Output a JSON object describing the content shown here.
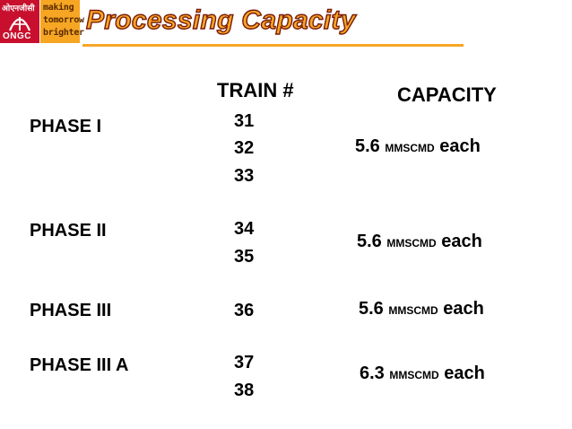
{
  "header": {
    "logo": {
      "hindi": "ओएनजीसी",
      "name": "ONGC"
    },
    "tagline": [
      "making",
      "tomorrow",
      "brighter"
    ],
    "title": "Processing Capacity"
  },
  "table": {
    "columns": {
      "train": "TRAIN #",
      "capacity": "CAPACITY"
    },
    "unit": "MMSCMD",
    "each": "each",
    "phases": [
      {
        "label": "PHASE  I",
        "trains": [
          "31",
          "32",
          "33"
        ],
        "capacity": "5.6"
      },
      {
        "label": "PHASE  II",
        "trains": [
          "34",
          "35"
        ],
        "capacity": "5.6"
      },
      {
        "label": "PHASE  III",
        "trains": [
          "36"
        ],
        "capacity": "5.6"
      },
      {
        "label": "PHASE  III A",
        "trains": [
          "37",
          "38"
        ],
        "capacity": "6.3"
      }
    ]
  },
  "colors": {
    "ongc_red": "#c8102e",
    "accent_orange": "#f6a623",
    "title_outline": "#7a1b0c"
  }
}
